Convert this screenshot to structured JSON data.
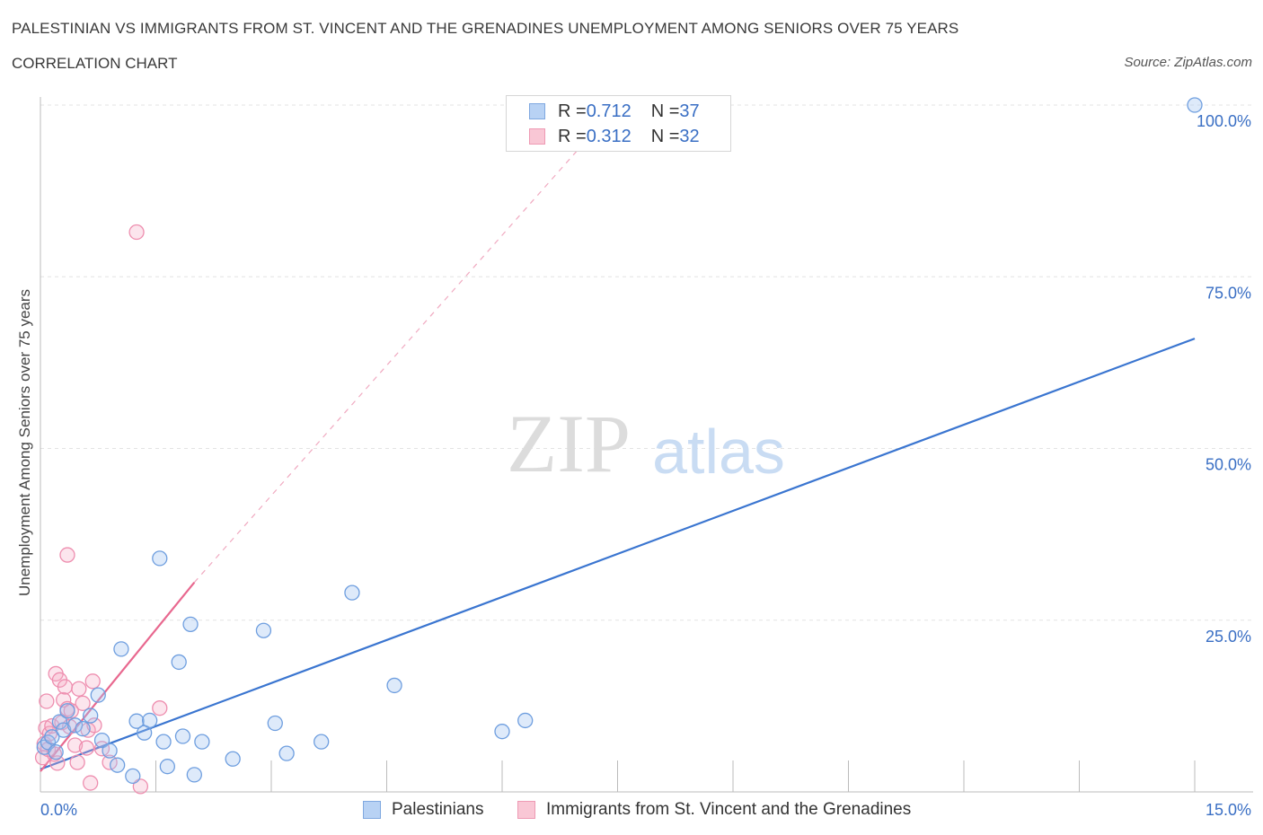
{
  "title": "PALESTINIAN VS IMMIGRANTS FROM ST. VINCENT AND THE GRENADINES UNEMPLOYMENT AMONG SENIORS OVER 75 YEARS",
  "subtitle": "CORRELATION CHART",
  "source": "Source: ZipAtlas.com",
  "watermark": {
    "zip": "ZIP",
    "atlas": "atlas"
  },
  "legend": {
    "r_label": "R = ",
    "n_label": "N = ",
    "rows": [
      {
        "r": "0.712",
        "n": "37",
        "fill": "#b8d2f4",
        "stroke": "#7fa8e0"
      },
      {
        "r": "0.312",
        "n": "32",
        "fill": "#f9c7d5",
        "stroke": "#ee9ab4"
      }
    ]
  },
  "colors": {
    "blue": "#3a75d0",
    "blue_fill": "rgba(160,195,240,0.35)",
    "blue_stroke": "#6e9edf",
    "pink": "#e8688f",
    "pink_fill": "rgba(245,170,195,0.30)",
    "pink_stroke": "#ee8eaf",
    "grid": "#e3e3e3",
    "axis_text": "#3a6fc4"
  },
  "chart_data": {
    "type": "scatter",
    "title": "PALESTINIAN VS IMMIGRANTS FROM ST. VINCENT AND THE GRENADINES UNEMPLOYMENT AMONG SENIORS OVER 75 YEARS",
    "xlabel": "",
    "ylabel": "Unemployment Among Seniors over 75 years",
    "xlim": [
      0,
      15
    ],
    "ylim": [
      0,
      100
    ],
    "x_tick_labels": [
      "0.0%",
      "15.0%"
    ],
    "y_ticks": [
      25,
      50,
      75,
      100
    ],
    "y_tick_labels": [
      "25.0%",
      "50.0%",
      "75.0%",
      "100.0%"
    ],
    "series": [
      {
        "name": "Palestinians",
        "r": 0.712,
        "n": 37,
        "points": [
          [
            0.05,
            6.5
          ],
          [
            0.1,
            7.2
          ],
          [
            0.15,
            8.0
          ],
          [
            0.2,
            5.8
          ],
          [
            0.25,
            10.2
          ],
          [
            0.3,
            9.0
          ],
          [
            0.35,
            11.8
          ],
          [
            0.45,
            9.7
          ],
          [
            0.55,
            9.2
          ],
          [
            0.65,
            11.1
          ],
          [
            0.75,
            14.1
          ],
          [
            0.8,
            7.5
          ],
          [
            0.9,
            6.0
          ],
          [
            1.0,
            3.9
          ],
          [
            1.05,
            20.8
          ],
          [
            1.2,
            2.3
          ],
          [
            1.25,
            10.3
          ],
          [
            1.35,
            8.6
          ],
          [
            1.42,
            10.4
          ],
          [
            1.55,
            34.0
          ],
          [
            1.6,
            7.3
          ],
          [
            1.65,
            3.7
          ],
          [
            1.8,
            18.9
          ],
          [
            1.85,
            8.1
          ],
          [
            1.95,
            24.4
          ],
          [
            2.0,
            2.5
          ],
          [
            2.1,
            7.3
          ],
          [
            2.5,
            4.8
          ],
          [
            2.9,
            23.5
          ],
          [
            3.05,
            10.0
          ],
          [
            3.2,
            5.6
          ],
          [
            3.65,
            7.3
          ],
          [
            4.05,
            29.0
          ],
          [
            4.6,
            15.5
          ],
          [
            6.0,
            8.8
          ],
          [
            6.3,
            10.4
          ],
          [
            15.0,
            100.0
          ]
        ],
        "trend": {
          "x": [
            0,
            15
          ],
          "y": [
            3.3,
            66.0
          ]
        }
      },
      {
        "name": "Immigrants from St. Vincent and the Grenadines",
        "r": 0.312,
        "n": 32,
        "points": [
          [
            0.03,
            5.0
          ],
          [
            0.05,
            7.0
          ],
          [
            0.07,
            9.3
          ],
          [
            0.08,
            13.2
          ],
          [
            0.1,
            6.2
          ],
          [
            0.12,
            8.5
          ],
          [
            0.15,
            9.6
          ],
          [
            0.18,
            5.5
          ],
          [
            0.2,
            17.2
          ],
          [
            0.22,
            4.2
          ],
          [
            0.25,
            16.3
          ],
          [
            0.28,
            10.1
          ],
          [
            0.3,
            13.4
          ],
          [
            0.32,
            15.3
          ],
          [
            0.35,
            12.1
          ],
          [
            0.38,
            9.5
          ],
          [
            0.4,
            11.8
          ],
          [
            0.45,
            6.8
          ],
          [
            0.48,
            4.3
          ],
          [
            0.5,
            15.0
          ],
          [
            0.55,
            12.9
          ],
          [
            0.6,
            6.4
          ],
          [
            0.62,
            9.0
          ],
          [
            0.65,
            1.3
          ],
          [
            0.68,
            16.1
          ],
          [
            0.7,
            9.7
          ],
          [
            0.8,
            6.3
          ],
          [
            0.9,
            4.3
          ],
          [
            1.25,
            81.5
          ],
          [
            1.3,
            0.8
          ],
          [
            1.55,
            12.2
          ],
          [
            0.35,
            34.5
          ]
        ],
        "trend": {
          "x": [
            0,
            2.0
          ],
          "y": [
            3.0,
            30.5
          ]
        },
        "trend_extended": {
          "x": [
            2.0,
            7.5
          ],
          "y": [
            30.5,
            100
          ]
        }
      }
    ]
  },
  "bottom_legend": [
    {
      "label": "Palestinians",
      "fill": "#b8d2f4",
      "stroke": "#7fa8e0"
    },
    {
      "label": "Immigrants from St. Vincent and the Grenadines",
      "fill": "#f9c7d5",
      "stroke": "#ee9ab4"
    }
  ]
}
